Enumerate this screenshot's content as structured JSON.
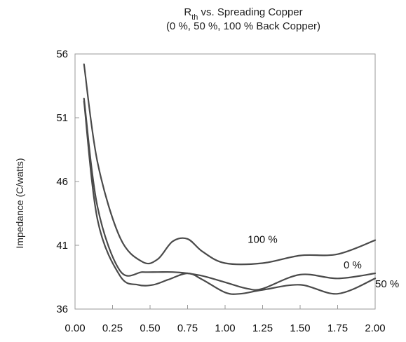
{
  "chart_data": {
    "type": "line",
    "title": {
      "main": "R",
      "subscript": "th",
      "rest": " vs. Spreading Copper",
      "subtitle": "(0 %, 50 %, 100 % Back Copper)"
    },
    "xlabel": "",
    "ylabel": "Impedance (C/watts)",
    "xlim": [
      0,
      2.0
    ],
    "ylim": [
      36,
      56
    ],
    "xticks": [
      "0.00",
      "0.25",
      "0.50",
      "0.75",
      "1.00",
      "1.25",
      "1.50",
      "1.75",
      "2.00"
    ],
    "xtick_values": [
      0,
      0.25,
      0.5,
      0.75,
      1.0,
      1.25,
      1.5,
      1.75,
      2.0
    ],
    "yticks": [
      "36",
      "41",
      "46",
      "51",
      "56"
    ],
    "ytick_values": [
      36,
      41,
      46,
      51,
      56
    ],
    "grid": false,
    "series": [
      {
        "name": "100 %",
        "label_at": [
          1.25,
          41.2
        ],
        "x": [
          0.06,
          0.15,
          0.3,
          0.45,
          0.55,
          0.65,
          0.75,
          0.85,
          1.0,
          1.25,
          1.5,
          1.75,
          2.0
        ],
        "y": [
          55.2,
          47.5,
          41.6,
          39.7,
          39.9,
          41.3,
          41.5,
          40.5,
          39.6,
          39.6,
          40.2,
          40.3,
          41.4
        ]
      },
      {
        "name": "0 %",
        "label_at": [
          1.85,
          39.2
        ],
        "x": [
          0.06,
          0.15,
          0.3,
          0.45,
          0.55,
          0.65,
          0.75,
          0.85,
          1.0,
          1.15,
          1.25,
          1.5,
          1.75,
          2.0
        ],
        "y": [
          52.5,
          44.0,
          39.0,
          38.9,
          38.9,
          38.9,
          38.8,
          38.6,
          38.1,
          37.6,
          37.6,
          38.7,
          38.4,
          38.8
        ]
      },
      {
        "name": "50 %",
        "label_at": [
          2.08,
          37.7
        ],
        "x": [
          0.06,
          0.15,
          0.3,
          0.42,
          0.52,
          0.62,
          0.75,
          0.85,
          1.0,
          1.1,
          1.25,
          1.5,
          1.75,
          2.0
        ],
        "y": [
          52.3,
          43.0,
          38.6,
          37.9,
          37.9,
          38.3,
          38.8,
          38.3,
          37.3,
          37.2,
          37.5,
          37.9,
          37.2,
          38.4
        ]
      }
    ],
    "line_color": "#4a4a4a",
    "axis_color": "#999999"
  }
}
